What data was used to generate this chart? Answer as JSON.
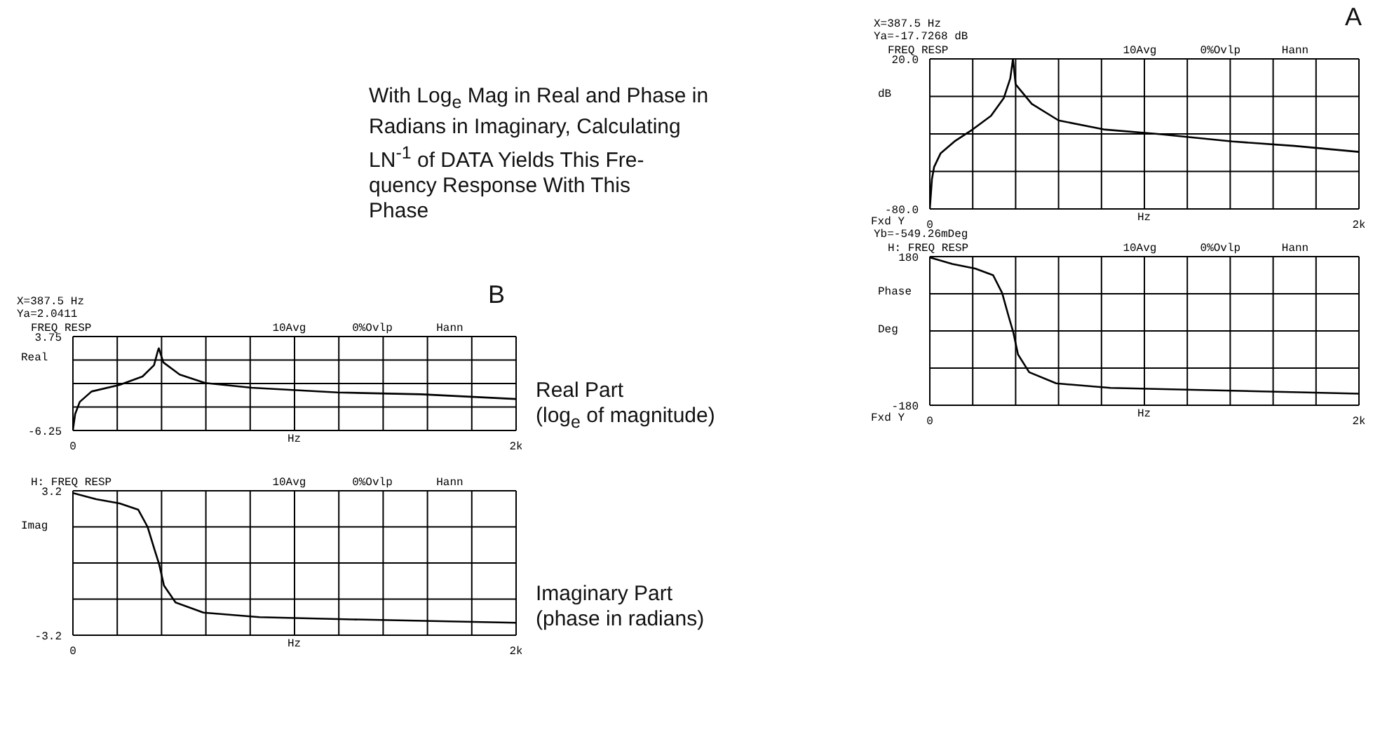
{
  "chart_data": [
    {
      "type": "line",
      "subtitle": "X=387.5 Hz\nYa=-17.7268 dB",
      "title": "FREQ RESP",
      "ylabel": "dB",
      "xlabel": "Hz",
      "annotations": [
        "10Avg",
        "0%Ovlp",
        "Hann",
        "A",
        "Fxd Y",
        "With Log$_{e}$ Mag in Real and Phase in\nRadians in Imaginary, Calculating\nLN$^{-1}$ of DATA Yields This Fre-\nquency Response With This\nPhase"
      ],
      "color": "#000000",
      "grid": true,
      "x": [
        0,
        10,
        20,
        50,
        115,
        200,
        285,
        345,
        375,
        387.5,
        400,
        475,
        600,
        810,
        1060,
        1410,
        1700,
        2000
      ],
      "values": [
        -80,
        -60,
        -52,
        -43,
        -35,
        -27,
        -18,
        -6,
        7,
        20,
        3,
        -10,
        -21,
        -27,
        -30,
        -35,
        -38,
        -42
      ],
      "xlim": [
        0,
        2000
      ],
      "xticks": [
        {
          "value": 0,
          "label": "0"
        },
        {
          "value": 200,
          "label": null
        },
        {
          "value": 400,
          "label": null
        },
        {
          "value": 600,
          "label": null
        },
        {
          "value": 800,
          "label": null
        },
        {
          "value": 1000,
          "label": null
        },
        {
          "value": 1200,
          "label": null
        },
        {
          "value": 1400,
          "label": null
        },
        {
          "value": 1600,
          "label": null
        },
        {
          "value": 1800,
          "label": null
        },
        {
          "value": 2000,
          "label": "2k"
        }
      ],
      "ylim": [
        -80,
        20
      ],
      "yticks": [
        {
          "value": -80,
          "label": "-80.0"
        },
        {
          "value": -55,
          "label": null
        },
        {
          "value": -30,
          "label": null
        },
        {
          "value": -5,
          "label": null
        },
        {
          "value": 20,
          "label": "20.0"
        }
      ]
    },
    {
      "type": "line",
      "subtitle": "Yb=-549.26mDeg",
      "title": "H: FREQ RESP",
      "ylabel": "Phase\nDeg",
      "xlabel": "Hz",
      "annotations": [
        "10Avg",
        "0%Ovlp",
        "Hann",
        "Fxd Y"
      ],
      "color": "#000000",
      "grid": true,
      "x": [
        0,
        105,
        211,
        295,
        337,
        368,
        389,
        411,
        463,
        589,
        842,
        1263,
        2000
      ],
      "values": [
        178,
        162,
        151,
        135,
        92,
        34,
        -3,
        -57,
        -100,
        -127,
        -138,
        -143,
        -152
      ],
      "xlim": [
        0,
        2000
      ],
      "xticks": [
        {
          "value": 0,
          "label": "0"
        },
        {
          "value": 200,
          "label": null
        },
        {
          "value": 400,
          "label": null
        },
        {
          "value": 600,
          "label": null
        },
        {
          "value": 800,
          "label": null
        },
        {
          "value": 1000,
          "label": null
        },
        {
          "value": 1200,
          "label": null
        },
        {
          "value": 1400,
          "label": null
        },
        {
          "value": 1600,
          "label": null
        },
        {
          "value": 1800,
          "label": null
        },
        {
          "value": 2000,
          "label": "2k"
        }
      ],
      "ylim": [
        -180,
        180
      ],
      "yticks": [
        -180,
        {
          "value": -90,
          "label": null
        },
        {
          "value": 0,
          "label": null
        },
        {
          "value": 90,
          "label": null
        },
        180
      ]
    },
    {
      "type": "line",
      "subtitle": "X=387.5 Hz\nYa=2.0411",
      "title": "FREQ RESP",
      "ylabel": "Real",
      "xlabel": "Hz",
      "annotations": [
        "10Avg",
        "0%Ovlp",
        "Hann",
        "B",
        "Real Part\n(log$_{e}$ of magnitude)"
      ],
      "color": "#000000",
      "grid": true,
      "x": [
        0,
        10,
        31,
        84,
        210,
        314,
        366,
        383,
        387.5,
        408,
        482,
        597,
        806,
        1194,
        1571,
        2000
      ],
      "values": [
        -6.2,
        -4.5,
        -3.2,
        -2.1,
        -1.4,
        -0.5,
        0.7,
        2.2,
        2.5,
        1.0,
        -0.3,
        -1.2,
        -1.7,
        -2.2,
        -2.4,
        -2.9
      ],
      "xlim": [
        0,
        2000
      ],
      "xticks": [
        {
          "value": 0,
          "label": "0"
        },
        {
          "value": 200,
          "label": null
        },
        {
          "value": 400,
          "label": null
        },
        {
          "value": 600,
          "label": null
        },
        {
          "value": 800,
          "label": null
        },
        {
          "value": 1000,
          "label": null
        },
        {
          "value": 1200,
          "label": null
        },
        {
          "value": 1400,
          "label": null
        },
        {
          "value": 1600,
          "label": null
        },
        {
          "value": 1800,
          "label": null
        },
        {
          "value": 2000,
          "label": "2k"
        }
      ],
      "ylim": [
        -6.25,
        3.75
      ],
      "yticks": [
        -6.25,
        {
          "value": -3.75,
          "label": null
        },
        {
          "value": -1.25,
          "label": null
        },
        {
          "value": 1.25,
          "label": null
        },
        3.75
      ]
    },
    {
      "type": "line",
      "title": "H: FREQ RESP",
      "ylabel": "Imag",
      "xlabel": "Hz",
      "annotations": [
        "10Avg",
        "0%Ovlp",
        "Hann",
        "Imaginary Part\n(phase in radians)"
      ],
      "color": "#000000",
      "grid": true,
      "x": [
        0,
        105,
        211,
        295,
        337,
        368,
        389,
        411,
        463,
        589,
        842,
        1263,
        2000
      ],
      "values": [
        3.1,
        2.83,
        2.64,
        2.36,
        1.6,
        0.6,
        -0.05,
        -1.0,
        -1.75,
        -2.2,
        -2.4,
        -2.5,
        -2.65
      ],
      "xlim": [
        0,
        2000
      ],
      "xticks": [
        {
          "value": 0,
          "label": "0"
        },
        {
          "value": 200,
          "label": null
        },
        {
          "value": 400,
          "label": null
        },
        {
          "value": 600,
          "label": null
        },
        {
          "value": 800,
          "label": null
        },
        {
          "value": 1000,
          "label": null
        },
        {
          "value": 1200,
          "label": null
        },
        {
          "value": 1400,
          "label": null
        },
        {
          "value": 1600,
          "label": null
        },
        {
          "value": 1800,
          "label": null
        },
        {
          "value": 2000,
          "label": "2k"
        }
      ],
      "ylim": [
        -3.2,
        3.2
      ],
      "yticks": [
        -3.2,
        {
          "value": -1.6,
          "label": null
        },
        {
          "value": 0,
          "label": null
        },
        {
          "value": 1.6,
          "label": null
        },
        3.2
      ]
    }
  ]
}
